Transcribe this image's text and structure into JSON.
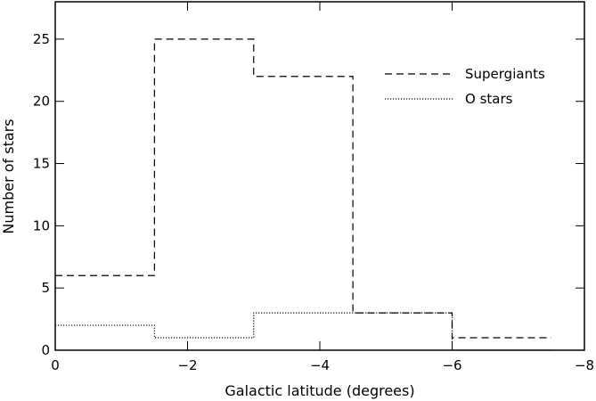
{
  "chart_data": {
    "type": "histogram",
    "xlabel": "Galactic latitude (degrees)",
    "ylabel": "Number of stars",
    "xlim": [
      0,
      -8
    ],
    "ylim": [
      0,
      28
    ],
    "x_ticks": [
      {
        "value": 0,
        "label": "0"
      },
      {
        "value": -2,
        "label": "−2"
      },
      {
        "value": -4,
        "label": "−4"
      },
      {
        "value": -6,
        "label": "−6"
      },
      {
        "value": -8,
        "label": "−8"
      }
    ],
    "y_ticks": [
      {
        "value": 0,
        "label": "0"
      },
      {
        "value": 5,
        "label": "5"
      },
      {
        "value": 10,
        "label": "10"
      },
      {
        "value": 15,
        "label": "15"
      },
      {
        "value": 20,
        "label": "20"
      },
      {
        "value": 25,
        "label": "25"
      }
    ],
    "bin_edges": [
      0,
      -1.5,
      -3,
      -4.5,
      -6,
      -7.5
    ],
    "series": [
      {
        "name": "Supergiants",
        "line_style": "dashed",
        "values": [
          6,
          25,
          22,
          3,
          1
        ]
      },
      {
        "name": "O stars",
        "line_style": "dotted",
        "values": [
          2,
          1,
          3,
          3,
          0
        ]
      }
    ],
    "legend_position": "top-right",
    "grid": false
  }
}
